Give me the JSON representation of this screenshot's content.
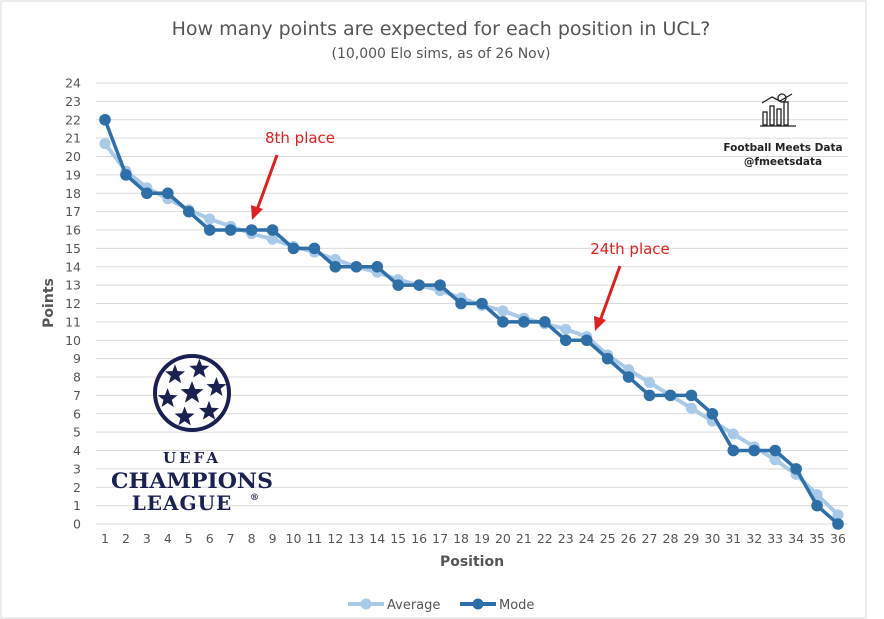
{
  "chart_data": {
    "type": "line",
    "title": "How many points are expected for each position in UCL?",
    "subtitle": "(10,000 Elo sims, as of 26 Nov)",
    "xlabel": "Position",
    "ylabel": "Points",
    "ylim": [
      0,
      24
    ],
    "y_ticks": [
      "0",
      "1",
      "2",
      "3",
      "4",
      "5",
      "6",
      "7",
      "8",
      "9",
      "10",
      "11",
      "12",
      "13",
      "14",
      "15",
      "16",
      "17",
      "18",
      "19",
      "20",
      "21",
      "22",
      "23",
      "24"
    ],
    "categories": [
      "1",
      "2",
      "3",
      "4",
      "5",
      "6",
      "7",
      "8",
      "9",
      "10",
      "11",
      "12",
      "13",
      "14",
      "15",
      "16",
      "17",
      "18",
      "19",
      "20",
      "21",
      "22",
      "23",
      "24",
      "25",
      "26",
      "27",
      "28",
      "29",
      "30",
      "31",
      "32",
      "33",
      "34",
      "35",
      "36"
    ],
    "grid": true,
    "legend_position": "bottom",
    "series": [
      {
        "name": "Average",
        "color": "#a9c9e8",
        "values": [
          20.7,
          19.2,
          18.3,
          17.7,
          17.1,
          16.6,
          16.2,
          15.8,
          15.5,
          15.1,
          14.8,
          14.4,
          14.0,
          13.7,
          13.3,
          13.0,
          12.7,
          12.3,
          11.9,
          11.6,
          11.2,
          10.9,
          10.6,
          10.2,
          9.2,
          8.4,
          7.7,
          7.0,
          6.3,
          5.6,
          4.9,
          4.2,
          3.5,
          2.7,
          1.6,
          0.5
        ]
      },
      {
        "name": "Mode",
        "color": "#2e6fa8",
        "values": [
          22,
          19,
          18,
          18,
          17,
          16,
          16,
          16,
          16,
          15,
          15,
          14,
          14,
          14,
          13,
          13,
          13,
          12,
          12,
          11,
          11,
          11,
          10,
          10,
          9,
          8,
          7,
          7,
          7,
          6,
          4,
          4,
          4,
          3,
          1,
          0
        ]
      }
    ],
    "annotations": [
      {
        "text": "8th place",
        "position": 8,
        "value": 16
      },
      {
        "text": "24th place",
        "position": 24,
        "value": 10
      }
    ]
  },
  "branding": {
    "name": "Football Meets Data",
    "handle": "@fmeetsdata"
  },
  "logo": {
    "uefa": "UEFA",
    "line1": "CHAMPIONS",
    "line2": "LEAGUE",
    "mark": "®"
  }
}
